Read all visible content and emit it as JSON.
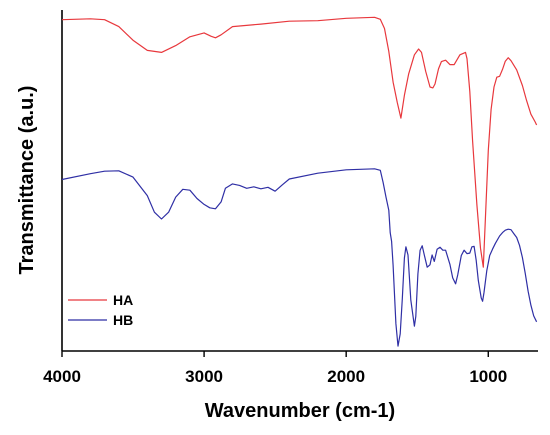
{
  "chart_data": {
    "type": "line",
    "title": "",
    "xlabel": "Wavenumber (cm-1)",
    "ylabel": "Transmittance (a.u.)",
    "xlim": [
      4000,
      650
    ],
    "x_reversed": true,
    "yaxis_tick_labels": false,
    "grid": false,
    "legend_placement": "bottom-left",
    "x_ticks": [
      {
        "value": 4000,
        "label": "4000"
      },
      {
        "value": 3000,
        "label": "3000"
      },
      {
        "value": 2000,
        "label": "2000"
      },
      {
        "value": 1000,
        "label": "1000"
      }
    ],
    "series": [
      {
        "name": "HA",
        "color": "#e8383d",
        "points": [
          [
            4000,
            93
          ],
          [
            3800,
            93.2
          ],
          [
            3700,
            93
          ],
          [
            3600,
            91.6
          ],
          [
            3500,
            88.8
          ],
          [
            3400,
            86.7
          ],
          [
            3300,
            86.3
          ],
          [
            3200,
            87.7
          ],
          [
            3100,
            89.5
          ],
          [
            3000,
            90.3
          ],
          [
            2950,
            89.6
          ],
          [
            2920,
            89.3
          ],
          [
            2880,
            89.9
          ],
          [
            2800,
            91.6
          ],
          [
            2600,
            92.1
          ],
          [
            2400,
            92.7
          ],
          [
            2200,
            92.8
          ],
          [
            2000,
            93.3
          ],
          [
            1800,
            93.5
          ],
          [
            1760,
            93.1
          ],
          [
            1730,
            91.2
          ],
          [
            1700,
            86.5
          ],
          [
            1670,
            80.2
          ],
          [
            1640,
            76
          ],
          [
            1615,
            72.8
          ],
          [
            1590,
            77.5
          ],
          [
            1560,
            81.9
          ],
          [
            1520,
            85.8
          ],
          [
            1490,
            87
          ],
          [
            1470,
            86.3
          ],
          [
            1440,
            82.4
          ],
          [
            1410,
            79.2
          ],
          [
            1390,
            79
          ],
          [
            1375,
            79.8
          ],
          [
            1350,
            82.9
          ],
          [
            1330,
            84.4
          ],
          [
            1300,
            84.7
          ],
          [
            1270,
            83.8
          ],
          [
            1240,
            83.8
          ],
          [
            1200,
            85.8
          ],
          [
            1160,
            86.3
          ],
          [
            1150,
            85
          ],
          [
            1130,
            78.3
          ],
          [
            1110,
            68.1
          ],
          [
            1080,
            55
          ],
          [
            1055,
            46.1
          ],
          [
            1035,
            42.2
          ],
          [
            1020,
            52.2
          ],
          [
            1000,
            66.2
          ],
          [
            980,
            74.6
          ],
          [
            960,
            79.2
          ],
          [
            940,
            81.2
          ],
          [
            920,
            81.4
          ],
          [
            900,
            82.8
          ],
          [
            880,
            84.5
          ],
          [
            860,
            85.2
          ],
          [
            840,
            84.6
          ],
          [
            800,
            82.7
          ],
          [
            760,
            79.5
          ],
          [
            730,
            76.4
          ],
          [
            700,
            73.6
          ],
          [
            670,
            72
          ],
          [
            660,
            71.4
          ]
        ]
      },
      {
        "name": "HB",
        "color": "#2f2fa5",
        "points": [
          [
            4000,
            60.2
          ],
          [
            3800,
            61.4
          ],
          [
            3700,
            61.9
          ],
          [
            3600,
            62
          ],
          [
            3500,
            60.7
          ],
          [
            3400,
            56.9
          ],
          [
            3350,
            53.5
          ],
          [
            3300,
            52.1
          ],
          [
            3250,
            53.5
          ],
          [
            3200,
            56.6
          ],
          [
            3150,
            58.2
          ],
          [
            3100,
            58
          ],
          [
            3050,
            56.3
          ],
          [
            3000,
            55.1
          ],
          [
            2960,
            54.4
          ],
          [
            2920,
            54.2
          ],
          [
            2880,
            55.6
          ],
          [
            2850,
            58.4
          ],
          [
            2800,
            59.3
          ],
          [
            2750,
            59
          ],
          [
            2700,
            58.4
          ],
          [
            2650,
            58.7
          ],
          [
            2600,
            58.3
          ],
          [
            2550,
            58.6
          ],
          [
            2500,
            57.8
          ],
          [
            2450,
            59.1
          ],
          [
            2400,
            60.3
          ],
          [
            2200,
            61.5
          ],
          [
            2000,
            62.2
          ],
          [
            1800,
            62.4
          ],
          [
            1760,
            62.1
          ],
          [
            1740,
            59.6
          ],
          [
            1720,
            56.6
          ],
          [
            1700,
            53.9
          ],
          [
            1690,
            49.3
          ],
          [
            1680,
            47.5
          ],
          [
            1670,
            42.6
          ],
          [
            1650,
            30.6
          ],
          [
            1635,
            26
          ],
          [
            1620,
            28.5
          ],
          [
            1605,
            35.7
          ],
          [
            1590,
            44.1
          ],
          [
            1580,
            46.4
          ],
          [
            1565,
            44.7
          ],
          [
            1545,
            35.5
          ],
          [
            1520,
            30.1
          ],
          [
            1510,
            32.1
          ],
          [
            1495,
            40.8
          ],
          [
            1480,
            45.7
          ],
          [
            1465,
            46.6
          ],
          [
            1450,
            44.7
          ],
          [
            1430,
            42.2
          ],
          [
            1410,
            42.7
          ],
          [
            1395,
            44.7
          ],
          [
            1380,
            43.4
          ],
          [
            1360,
            45.9
          ],
          [
            1340,
            46.3
          ],
          [
            1320,
            45.7
          ],
          [
            1300,
            45.7
          ],
          [
            1270,
            42.8
          ],
          [
            1250,
            40
          ],
          [
            1230,
            38.8
          ],
          [
            1215,
            40.6
          ],
          [
            1190,
            44.6
          ],
          [
            1170,
            45.7
          ],
          [
            1150,
            45
          ],
          [
            1130,
            45.1
          ],
          [
            1115,
            46.4
          ],
          [
            1100,
            46.5
          ],
          [
            1085,
            43.6
          ],
          [
            1070,
            39.5
          ],
          [
            1050,
            35.9
          ],
          [
            1040,
            35.2
          ],
          [
            1030,
            37
          ],
          [
            1010,
            41.5
          ],
          [
            990,
            44.6
          ],
          [
            970,
            45.9
          ],
          [
            950,
            47.1
          ],
          [
            920,
            48.6
          ],
          [
            900,
            49.3
          ],
          [
            880,
            49.8
          ],
          [
            860,
            50
          ],
          [
            840,
            49.9
          ],
          [
            820,
            49.1
          ],
          [
            800,
            48.3
          ],
          [
            780,
            46.7
          ],
          [
            760,
            44.2
          ],
          [
            740,
            41
          ],
          [
            720,
            37.3
          ],
          [
            700,
            34.4
          ],
          [
            680,
            32.2
          ],
          [
            660,
            31
          ]
        ]
      }
    ]
  }
}
